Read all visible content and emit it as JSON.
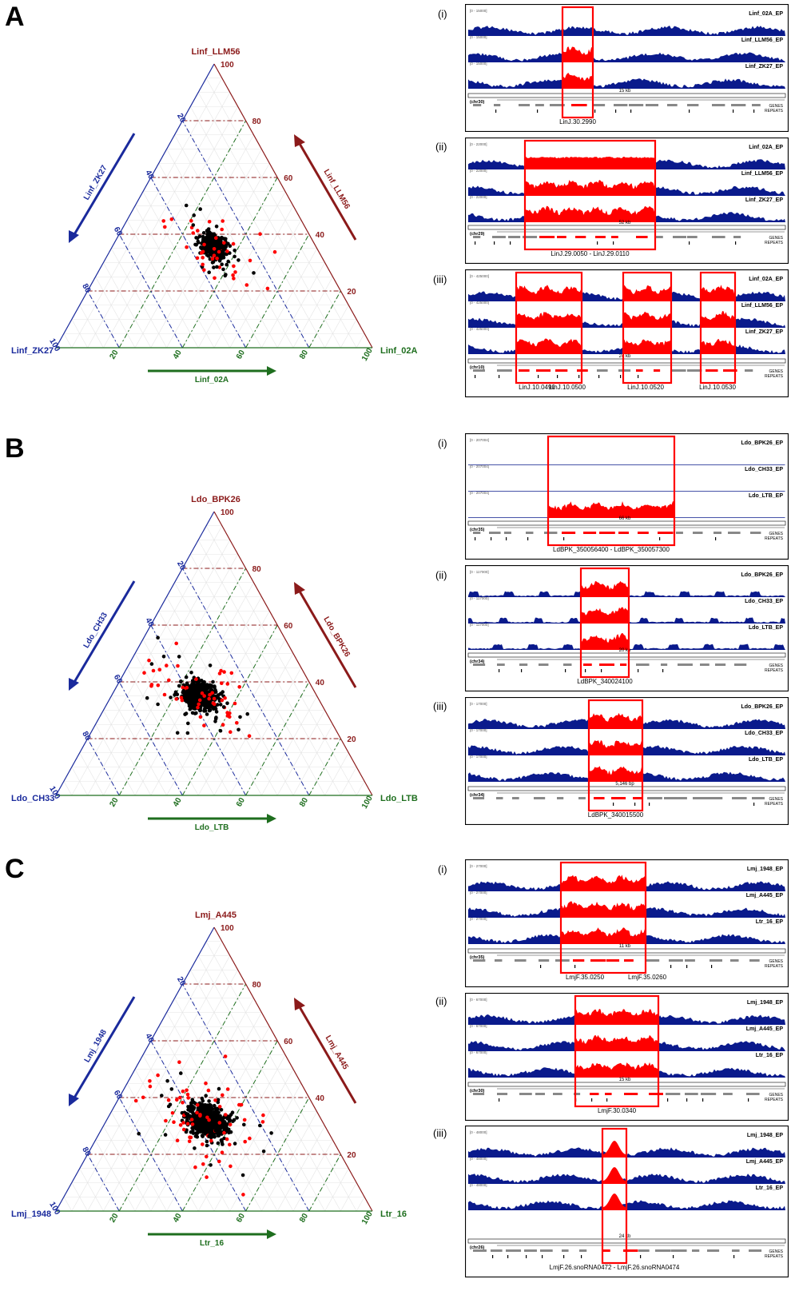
{
  "colors": {
    "top": "#8b1a1a",
    "left": "#1a2a9c",
    "bottom": "#1e6e1e",
    "red": "#ff0000",
    "blue": "#0a1a8c"
  },
  "panels": [
    {
      "letter": "A",
      "ternary": {
        "top_label": "Linf_LLM56",
        "left_label": "Linf_ZK27",
        "right_label": "Linf_02A",
        "left_arrow_label": "Linf_ZK27",
        "right_arrow_label": "Linf_LLM56",
        "bottom_arrow_label": "Linf_02A",
        "ticks": [
          "20",
          "40",
          "60",
          "80",
          "100"
        ],
        "cluster": {
          "a": 0.36,
          "b": 0.32,
          "spread": 0.06,
          "n": 380
        }
      },
      "tracks": [
        {
          "roman": "(i)",
          "samples": [
            "Linf_02A_EP",
            "Linf_LLM56_EP",
            "Linf_ZK27_EP"
          ],
          "range": "[0 - 15000]",
          "chr": "(chr30)",
          "scale": "15 kb",
          "gene_label": "LinJ.30.2990",
          "gene_labels": []
        },
        {
          "roman": "(ii)",
          "samples": [
            "Linf_02A_EP",
            "Linf_LLM56_EP",
            "Linf_ZK27_EP"
          ],
          "range": "[0 - 22000]",
          "chr": "(chr29)",
          "scale": "52 kb",
          "gene_label": "LinJ.29.0050 - LinJ.29.0110",
          "gene_labels": []
        },
        {
          "roman": "(iii)",
          "samples": [
            "Linf_02A_EP",
            "Linf_LLM56_EP",
            "Linf_ZK27_EP"
          ],
          "range": "[0 - 425000]",
          "chr": "(chr10)",
          "scale": "24 kb",
          "gene_label": "",
          "gene_labels": [
            "LinJ.10.0490",
            "LinJ.10.0500",
            "LinJ.10.0520",
            "LinJ.10.0530"
          ]
        }
      ]
    },
    {
      "letter": "B",
      "ternary": {
        "top_label": "Ldo_BPK26",
        "left_label": "Ldo_CH33",
        "right_label": "Ldo_LTB",
        "left_arrow_label": "Ldo_CH33",
        "right_arrow_label": "Ldo_BPK26",
        "bottom_arrow_label": "Ldo_LTB",
        "ticks": [
          "20",
          "40",
          "60",
          "80",
          "100"
        ],
        "cluster": {
          "a": 0.35,
          "b": 0.37,
          "spread": 0.07,
          "n": 520
        }
      },
      "tracks": [
        {
          "roman": "(i)",
          "samples": [
            "Ldo_BPK26_EP",
            "Ldo_CH33_EP",
            "Ldo_LTB_EP"
          ],
          "range": "[0 - 207004]",
          "chr": "(chr35)",
          "scale": "66 kb",
          "gene_label": "LdBPK_350056400 - LdBPK_350057300",
          "gene_labels": []
        },
        {
          "roman": "(ii)",
          "samples": [
            "Ldo_BPK26_EP",
            "Ldo_CH33_EP",
            "Ldo_LTB_EP"
          ],
          "range": "[0 - 117000]",
          "chr": "(chr34)",
          "scale": "20 kb",
          "gene_label": "LdBPK_340024100",
          "gene_labels": []
        },
        {
          "roman": "(iii)",
          "samples": [
            "Ldo_BPK26_EP",
            "Ldo_CH33_EP",
            "Ldo_LTB_EP"
          ],
          "range": "[0 - 17000]",
          "chr": "(chr34)",
          "scale": "5,146 bp",
          "gene_label": "LdBPK_340015500",
          "gene_labels": []
        }
      ]
    },
    {
      "letter": "C",
      "ternary": {
        "top_label": "Lmj_A445",
        "left_label": "Lmj_1948",
        "right_label": "Ltr_16",
        "left_arrow_label": "Lmj_1948",
        "right_arrow_label": "Lmj_A445",
        "bottom_arrow_label": "Ltr_16",
        "ticks": [
          "20",
          "40",
          "60",
          "80",
          "100"
        ],
        "cluster": {
          "a": 0.32,
          "b": 0.36,
          "spread": 0.08,
          "n": 650
        }
      },
      "tracks": [
        {
          "roman": "(i)",
          "samples": [
            "Lmj_1948_EP",
            "Lmj_A445_EP",
            "Ltr_16_EP"
          ],
          "range": "[0 - 27000]",
          "chr": "(chr35)",
          "scale": "11 kb",
          "gene_label": "",
          "gene_labels": [
            "LmjF.35.0250",
            "LmjF.35.0260"
          ]
        },
        {
          "roman": "(ii)",
          "samples": [
            "Lmj_1948_EP",
            "Lmj_A445_EP",
            "Ltr_16_EP"
          ],
          "range": "[0 - 67000]",
          "chr": "(chr30)",
          "scale": "15 kb",
          "gene_label": "LmjF.30.0340",
          "gene_labels": []
        },
        {
          "roman": "(iii)",
          "samples": [
            "Lmj_1948_EP",
            "Lmj_A445_EP",
            "Ltr_16_EP"
          ],
          "range": "[0 - 48000]",
          "chr": "(chr26)",
          "scale": "24 kb",
          "gene_label": "LmjF.26.snoRNA0472 - LmjF.26.snoRNA0474",
          "gene_labels": []
        }
      ]
    }
  ],
  "track_labels": {
    "genes": "GENES",
    "repeats": "REPEATS"
  }
}
